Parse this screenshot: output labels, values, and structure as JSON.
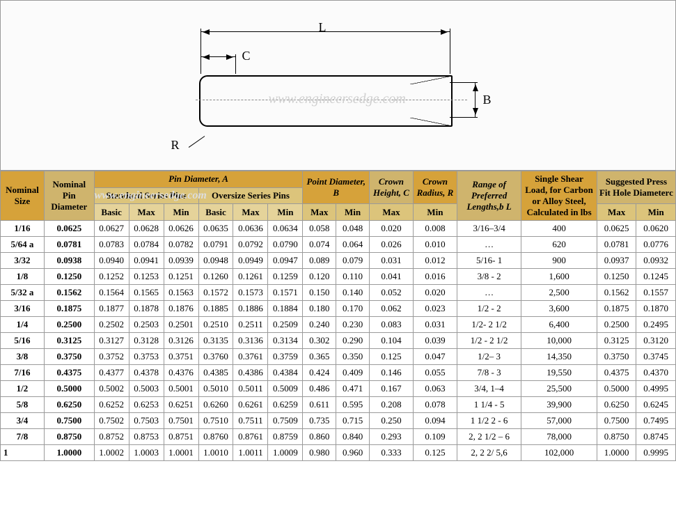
{
  "diagram": {
    "L": "L",
    "C": "C",
    "B": "B",
    "R": "R",
    "watermark": "www.engineersedge.com"
  },
  "headers": {
    "nominal_size": "Nominal Size",
    "nominal_pin_diameter": "Nominal Pin Diameter",
    "pin_diameter": "Pin Diameter, A",
    "standard_series": "Standard Series Pins",
    "oversize_series": "Oversize Series Pins",
    "point_diameter": "Point Diameter, B",
    "crown_height": "Crown Height, C",
    "crown_radius": "Crown Radius, R",
    "range_lengths": "Range of Preferred Lengths,b L",
    "shear_load": "Single Shear Load, for Carbon or Alloy Steel, Calculated in lbs",
    "press_fit": "Suggested Press Fit Hole Diameterc",
    "basic": "Basic",
    "max": "Max",
    "min": "Min"
  },
  "rows": [
    {
      "ns": "1/16",
      "npd": "0.0625",
      "ss": [
        "0.0627",
        "0.0628",
        "0.0626"
      ],
      "os": [
        "0.0635",
        "0.0636",
        "0.0634"
      ],
      "pd": [
        "0.058",
        "0.048"
      ],
      "ch": "0.020",
      "cr": "0.008",
      "rl": "3/16–3/4",
      "sl": "400",
      "pf": [
        "0.0625",
        "0.0620"
      ]
    },
    {
      "ns": "5/64 a",
      "npd": "0.0781",
      "ss": [
        "0.0783",
        "0.0784",
        "0.0782"
      ],
      "os": [
        "0.0791",
        "0.0792",
        "0.0790"
      ],
      "pd": [
        "0.074",
        "0.064"
      ],
      "ch": "0.026",
      "cr": "0.010",
      "rl": "…",
      "sl": "620",
      "pf": [
        "0.0781",
        "0.0776"
      ]
    },
    {
      "ns": "3/32",
      "npd": "0.0938",
      "ss": [
        "0.0940",
        "0.0941",
        "0.0939"
      ],
      "os": [
        "0.0948",
        "0.0949",
        "0.0947"
      ],
      "pd": [
        "0.089",
        "0.079"
      ],
      "ch": "0.031",
      "cr": "0.012",
      "rl": "5/16- 1",
      "sl": "900",
      "pf": [
        "0.0937",
        "0.0932"
      ]
    },
    {
      "ns": "1/8",
      "npd": "0.1250",
      "ss": [
        "0.1252",
        "0.1253",
        "0.1251"
      ],
      "os": [
        "0.1260",
        "0.1261",
        "0.1259"
      ],
      "pd": [
        "0.120",
        "0.110"
      ],
      "ch": "0.041",
      "cr": "0.016",
      "rl": "3/8 - 2",
      "sl": "1,600",
      "pf": [
        "0.1250",
        "0.1245"
      ]
    },
    {
      "ns": "5/32 a",
      "npd": "0.1562",
      "ss": [
        "0.1564",
        "0.1565",
        "0.1563"
      ],
      "os": [
        "0.1572",
        "0.1573",
        "0.1571"
      ],
      "pd": [
        "0.150",
        "0.140"
      ],
      "ch": "0.052",
      "cr": "0.020",
      "rl": "…",
      "sl": "2,500",
      "pf": [
        "0.1562",
        "0.1557"
      ]
    },
    {
      "ns": "3/16",
      "npd": "0.1875",
      "ss": [
        "0.1877",
        "0.1878",
        "0.1876"
      ],
      "os": [
        "0.1885",
        "0.1886",
        "0.1884"
      ],
      "pd": [
        "0.180",
        "0.170"
      ],
      "ch": "0.062",
      "cr": "0.023",
      "rl": "1/2 - 2",
      "sl": "3,600",
      "pf": [
        "0.1875",
        "0.1870"
      ]
    },
    {
      "ns": "1/4",
      "npd": "0.2500",
      "ss": [
        "0.2502",
        "0.2503",
        "0.2501"
      ],
      "os": [
        "0.2510",
        "0.2511",
        "0.2509"
      ],
      "pd": [
        "0.240",
        "0.230"
      ],
      "ch": "0.083",
      "cr": "0.031",
      "rl": "1/2- 2 1/2",
      "sl": "6,400",
      "pf": [
        "0.2500",
        "0.2495"
      ]
    },
    {
      "ns": "5/16",
      "npd": "0.3125",
      "ss": [
        "0.3127",
        "0.3128",
        "0.3126"
      ],
      "os": [
        "0.3135",
        "0.3136",
        "0.3134"
      ],
      "pd": [
        "0.302",
        "0.290"
      ],
      "ch": "0.104",
      "cr": "0.039",
      "rl": "1/2 - 2 1/2",
      "sl": "10,000",
      "pf": [
        "0.3125",
        "0.3120"
      ]
    },
    {
      "ns": "3/8",
      "npd": "0.3750",
      "ss": [
        "0.3752",
        "0.3753",
        "0.3751"
      ],
      "os": [
        "0.3760",
        "0.3761",
        "0.3759"
      ],
      "pd": [
        "0.365",
        "0.350"
      ],
      "ch": "0.125",
      "cr": "0.047",
      "rl": "1/2– 3",
      "sl": "14,350",
      "pf": [
        "0.3750",
        "0.3745"
      ]
    },
    {
      "ns": "7/16",
      "npd": "0.4375",
      "ss": [
        "0.4377",
        "0.4378",
        "0.4376"
      ],
      "os": [
        "0.4385",
        "0.4386",
        "0.4384"
      ],
      "pd": [
        "0.424",
        "0.409"
      ],
      "ch": "0.146",
      "cr": "0.055",
      "rl": "7/8 - 3",
      "sl": "19,550",
      "pf": [
        "0.4375",
        "0.4370"
      ]
    },
    {
      "ns": "1/2",
      "npd": "0.5000",
      "ss": [
        "0.5002",
        "0.5003",
        "0.5001"
      ],
      "os": [
        "0.5010",
        "0.5011",
        "0.5009"
      ],
      "pd": [
        "0.486",
        "0.471"
      ],
      "ch": "0.167",
      "cr": "0.063",
      "rl": "3/4, 1–4",
      "sl": "25,500",
      "pf": [
        "0.5000",
        "0.4995"
      ]
    },
    {
      "ns": "5/8",
      "npd": "0.6250",
      "ss": [
        "0.6252",
        "0.6253",
        "0.6251"
      ],
      "os": [
        "0.6260",
        "0.6261",
        "0.6259"
      ],
      "pd": [
        "0.611",
        "0.595"
      ],
      "ch": "0.208",
      "cr": "0.078",
      "rl": "1 1/4 - 5",
      "sl": "39,900",
      "pf": [
        "0.6250",
        "0.6245"
      ]
    },
    {
      "ns": "3/4",
      "npd": "0.7500",
      "ss": [
        "0.7502",
        "0.7503",
        "0.7501"
      ],
      "os": [
        "0.7510",
        "0.7511",
        "0.7509"
      ],
      "pd": [
        "0.735",
        "0.715"
      ],
      "ch": "0.250",
      "cr": "0.094",
      "rl": "1 1/2 2 - 6",
      "sl": "57,000",
      "pf": [
        "0.7500",
        "0.7495"
      ]
    },
    {
      "ns": "7/8",
      "npd": "0.8750",
      "ss": [
        "0.8752",
        "0.8753",
        "0.8751"
      ],
      "os": [
        "0.8760",
        "0.8761",
        "0.8759"
      ],
      "pd": [
        "0.860",
        "0.840"
      ],
      "ch": "0.293",
      "cr": "0.109",
      "rl": "2, 2 1/2 – 6",
      "sl": "78,000",
      "pf": [
        "0.8750",
        "0.8745"
      ]
    },
    {
      "ns": "1",
      "npd": "1.0000",
      "ss": [
        "1.0002",
        "1.0003",
        "1.0001"
      ],
      "os": [
        "1.0010",
        "1.0011",
        "1.0009"
      ],
      "pd": [
        "0.980",
        "0.960"
      ],
      "ch": "0.333",
      "cr": "0.125",
      "rl": "2, 2 2/ 5,6",
      "sl": "102,000",
      "pf": [
        "1.0000",
        "0.9995"
      ],
      "lastrow": true
    }
  ]
}
